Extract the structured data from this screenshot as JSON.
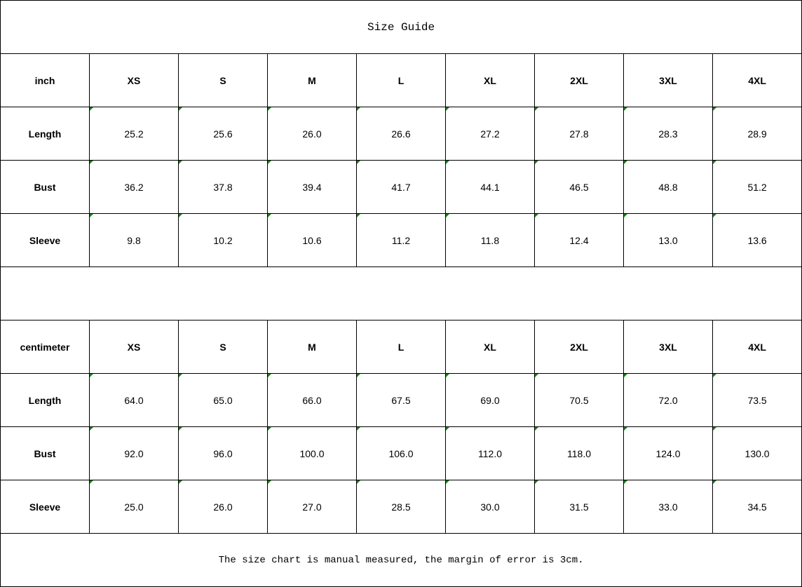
{
  "title": "Size Guide",
  "sizes": [
    "XS",
    "S",
    "M",
    "L",
    "XL",
    "2XL",
    "3XL",
    "4XL"
  ],
  "colors": {
    "cell_marker": "#1a7f1a"
  },
  "tables": [
    {
      "unit": "inch",
      "rows": [
        {
          "label": "Length",
          "values": [
            "25.2",
            "25.6",
            "26.0",
            "26.6",
            "27.2",
            "27.8",
            "28.3",
            "28.9"
          ]
        },
        {
          "label": "Bust",
          "values": [
            "36.2",
            "37.8",
            "39.4",
            "41.7",
            "44.1",
            "46.5",
            "48.8",
            "51.2"
          ]
        },
        {
          "label": "Sleeve",
          "values": [
            "9.8",
            "10.2",
            "10.6",
            "11.2",
            "11.8",
            "12.4",
            "13.0",
            "13.6"
          ]
        }
      ]
    },
    {
      "unit": "centimeter",
      "rows": [
        {
          "label": "Length",
          "values": [
            "64.0",
            "65.0",
            "66.0",
            "67.5",
            "69.0",
            "70.5",
            "72.0",
            "73.5"
          ]
        },
        {
          "label": "Bust",
          "values": [
            "92.0",
            "96.0",
            "100.0",
            "106.0",
            "112.0",
            "118.0",
            "124.0",
            "130.0"
          ]
        },
        {
          "label": "Sleeve",
          "values": [
            "25.0",
            "26.0",
            "27.0",
            "28.5",
            "30.0",
            "31.5",
            "33.0",
            "34.5"
          ]
        }
      ]
    }
  ],
  "note": "The size chart is manual measured, the margin of error is 3cm."
}
